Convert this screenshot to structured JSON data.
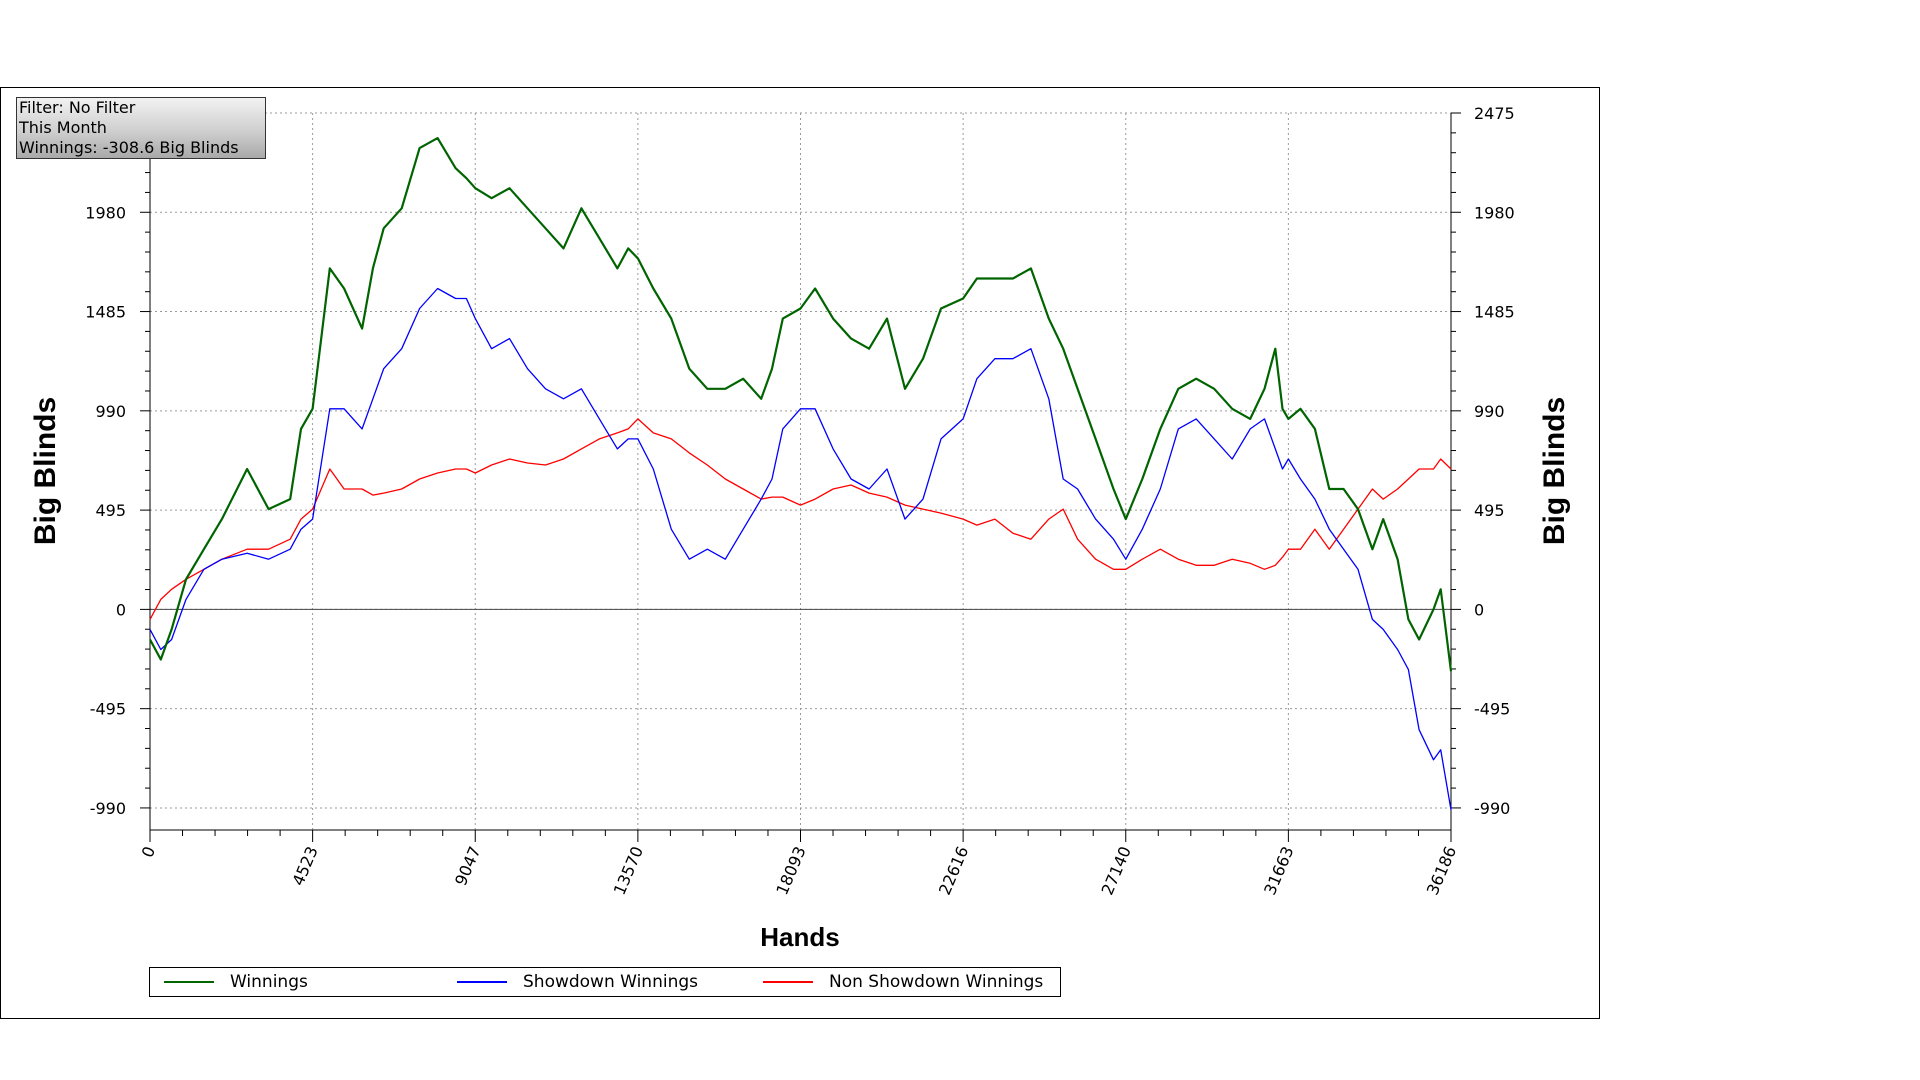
{
  "info_box": {
    "filter": "Filter: No Filter",
    "period": "This Month",
    "winnings": "Winnings: -308.6 Big Blinds"
  },
  "chart_data": {
    "type": "line",
    "xlabel": "Hands",
    "ylabel": "Big Blinds",
    "xlim": [
      0,
      36186
    ],
    "ylim": [
      -1100,
      2475
    ],
    "x_ticks": [
      0,
      4523,
      9047,
      13570,
      18093,
      22616,
      27140,
      31663,
      36186
    ],
    "y_ticks": [
      -990,
      -495,
      0,
      495,
      990,
      1485,
      1980,
      2475
    ],
    "y_tick_labels": [
      "-990",
      "-495",
      "0",
      "495",
      "990",
      "1485",
      "1980",
      "2475"
    ],
    "grid": true,
    "legend_position": "bottom",
    "colors": {
      "winnings": "#006400",
      "showdown": "#0000ff",
      "non_showdown": "#ff0000"
    },
    "series": [
      {
        "name": "Winnings",
        "x": [
          0,
          300,
          600,
          1000,
          1500,
          2000,
          2700,
          3300,
          3900,
          4200,
          4523,
          5000,
          5400,
          5900,
          6200,
          6500,
          7000,
          7500,
          8000,
          8500,
          8800,
          9047,
          9500,
          10000,
          10500,
          11000,
          11500,
          12000,
          12500,
          13000,
          13300,
          13570,
          14000,
          14500,
          15000,
          15500,
          16000,
          16500,
          17000,
          17300,
          17600,
          18093,
          18500,
          19000,
          19500,
          20000,
          20500,
          21000,
          21500,
          22000,
          22616,
          23000,
          23500,
          24000,
          24500,
          25000,
          25400,
          25800,
          26300,
          26800,
          27140,
          27600,
          28100,
          28600,
          29100,
          29600,
          30100,
          30600,
          31000,
          31300,
          31500,
          31663,
          32000,
          32400,
          32800,
          33200,
          33600,
          34000,
          34300,
          34700,
          35000,
          35300,
          35700,
          35900,
          36186
        ],
        "y": [
          -150,
          -250,
          -100,
          150,
          300,
          450,
          700,
          500,
          550,
          900,
          1000,
          1700,
          1600,
          1400,
          1700,
          1900,
          2000,
          2300,
          2350,
          2200,
          2150,
          2100,
          2050,
          2100,
          2000,
          1900,
          1800,
          2000,
          1850,
          1700,
          1800,
          1750,
          1600,
          1450,
          1200,
          1100,
          1100,
          1150,
          1050,
          1200,
          1450,
          1500,
          1600,
          1450,
          1350,
          1300,
          1450,
          1100,
          1250,
          1500,
          1550,
          1650,
          1650,
          1650,
          1700,
          1450,
          1300,
          1100,
          850,
          600,
          450,
          650,
          900,
          1100,
          1150,
          1100,
          1000,
          950,
          1100,
          1300,
          1000,
          950,
          1000,
          900,
          600,
          600,
          500,
          300,
          450,
          250,
          -50,
          -150,
          0,
          100,
          -308.6
        ]
      },
      {
        "name": "Showdown Winnings",
        "x": [
          0,
          300,
          600,
          1000,
          1500,
          2000,
          2700,
          3300,
          3900,
          4200,
          4523,
          5000,
          5400,
          5900,
          6200,
          6500,
          7000,
          7500,
          8000,
          8500,
          8800,
          9047,
          9500,
          10000,
          10500,
          11000,
          11500,
          12000,
          12500,
          13000,
          13300,
          13570,
          14000,
          14500,
          15000,
          15500,
          16000,
          16500,
          17000,
          17300,
          17600,
          18093,
          18500,
          19000,
          19500,
          20000,
          20500,
          21000,
          21500,
          22000,
          22616,
          23000,
          23500,
          24000,
          24500,
          25000,
          25400,
          25800,
          26300,
          26800,
          27140,
          27600,
          28100,
          28600,
          29100,
          29600,
          30100,
          30600,
          31000,
          31300,
          31500,
          31663,
          32000,
          32400,
          32800,
          33200,
          33600,
          34000,
          34300,
          34700,
          35000,
          35300,
          35700,
          35900,
          36186
        ],
        "y": [
          -100,
          -200,
          -150,
          50,
          200,
          250,
          280,
          250,
          300,
          400,
          450,
          1000,
          1000,
          900,
          1050,
          1200,
          1300,
          1500,
          1600,
          1550,
          1550,
          1450,
          1300,
          1350,
          1200,
          1100,
          1050,
          1100,
          950,
          800,
          850,
          850,
          700,
          400,
          250,
          300,
          250,
          400,
          550,
          650,
          900,
          1000,
          1000,
          800,
          650,
          600,
          700,
          450,
          550,
          850,
          950,
          1150,
          1250,
          1250,
          1300,
          1050,
          650,
          600,
          450,
          350,
          250,
          400,
          600,
          900,
          950,
          850,
          750,
          900,
          950,
          800,
          700,
          750,
          650,
          550,
          400,
          300,
          200,
          -50,
          -100,
          -200,
          -300,
          -600,
          -750,
          -700,
          -1000
        ]
      },
      {
        "name": "Non Showdown Winnings",
        "x": [
          0,
          300,
          600,
          1000,
          1500,
          2000,
          2700,
          3300,
          3900,
          4200,
          4523,
          5000,
          5400,
          5900,
          6200,
          6500,
          7000,
          7500,
          8000,
          8500,
          8800,
          9047,
          9500,
          10000,
          10500,
          11000,
          11500,
          12000,
          12500,
          13000,
          13300,
          13570,
          14000,
          14500,
          15000,
          15500,
          16000,
          16500,
          17000,
          17300,
          17600,
          18093,
          18500,
          19000,
          19500,
          20000,
          20500,
          21000,
          21500,
          22000,
          22616,
          23000,
          23500,
          24000,
          24500,
          25000,
          25400,
          25800,
          26300,
          26800,
          27140,
          27600,
          28100,
          28600,
          29100,
          29600,
          30100,
          30600,
          31000,
          31300,
          31500,
          31663,
          32000,
          32400,
          32800,
          33200,
          33600,
          34000,
          34300,
          34700,
          35000,
          35300,
          35700,
          35900,
          36186
        ],
        "y": [
          -50,
          50,
          100,
          150,
          200,
          250,
          300,
          300,
          350,
          450,
          500,
          700,
          600,
          600,
          570,
          580,
          600,
          650,
          680,
          700,
          700,
          680,
          720,
          750,
          730,
          720,
          750,
          800,
          850,
          880,
          900,
          950,
          880,
          850,
          780,
          720,
          650,
          600,
          550,
          560,
          560,
          520,
          550,
          600,
          620,
          580,
          560,
          520,
          500,
          480,
          450,
          420,
          450,
          380,
          350,
          450,
          500,
          350,
          250,
          200,
          200,
          250,
          300,
          250,
          220,
          220,
          250,
          230,
          200,
          220,
          260,
          300,
          300,
          400,
          300,
          400,
          500,
          600,
          550,
          600,
          650,
          700,
          700,
          750,
          700
        ]
      }
    ]
  },
  "legend": {
    "items": [
      {
        "label": "Winnings"
      },
      {
        "label": "Showdown Winnings"
      },
      {
        "label": "Non Showdown Winnings"
      }
    ]
  }
}
